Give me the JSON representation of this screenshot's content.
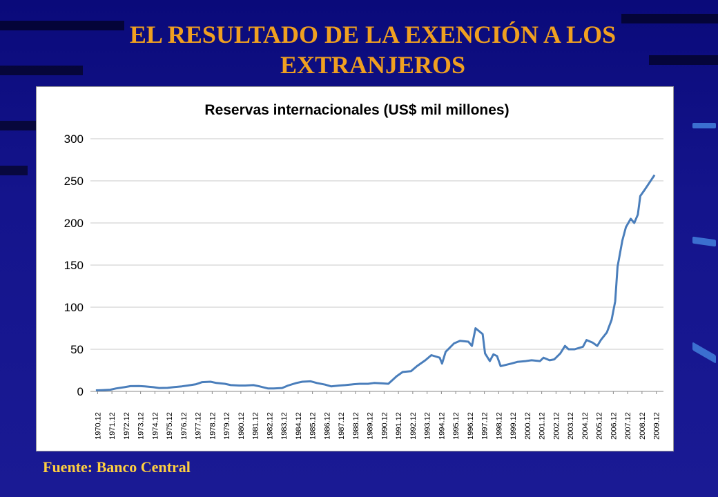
{
  "slide": {
    "title": "EL RESULTADO DE LA EXENCIÓN A LOS EXTRANJEROS",
    "source": "Fuente: Banco Central",
    "title_color": "#f0a020",
    "source_color": "#ffd040",
    "background": "#10108a"
  },
  "chart_data": {
    "type": "line",
    "title": "Reservas internacionales (US$ mil millones)",
    "xlabel": "",
    "ylabel": "",
    "ylim": [
      0,
      300
    ],
    "yticks": [
      0,
      50,
      100,
      150,
      200,
      250,
      300
    ],
    "grid": true,
    "legend": "none",
    "line_color": "#4a7ebb",
    "categories": [
      "1970.12",
      "1971.12",
      "1972.12",
      "1973.12",
      "1974.12",
      "1975.12",
      "1976.12",
      "1977.12",
      "1978.12",
      "1979.12",
      "1980.12",
      "1981.12",
      "1982.12",
      "1983.12",
      "1984.12",
      "1985.12",
      "1986.12",
      "1987.12",
      "1988.12",
      "1989.12",
      "1990.12",
      "1991.12",
      "1992.12",
      "1993.12",
      "1994.12",
      "1995.12",
      "1996.12",
      "1997.12",
      "1998.12",
      "1999.12",
      "2000.12",
      "2001.12",
      "2002.12",
      "2003.12",
      "2004.12",
      "2005.12",
      "2006.12",
      "2007.12",
      "2008.12",
      "2009.12"
    ],
    "series": [
      {
        "points": [
          [
            "1970.12",
            1.2
          ],
          [
            "1971.5",
            1.5
          ],
          [
            "1971.12",
            2
          ],
          [
            "1972.5",
            3.5
          ],
          [
            "1972.12",
            5
          ],
          [
            "1973.5",
            6.2
          ],
          [
            "1973.12",
            6.4
          ],
          [
            "1974.5",
            6
          ],
          [
            "1974.12",
            5
          ],
          [
            "1975.5",
            4
          ],
          [
            "1975.12",
            4.2
          ],
          [
            "1976.5",
            5
          ],
          [
            "1976.12",
            6
          ],
          [
            "1977.5",
            7
          ],
          [
            "1977.12",
            8.5
          ],
          [
            "1978.5",
            11
          ],
          [
            "1978.12",
            11.5
          ],
          [
            "1979.5",
            10
          ],
          [
            "1979.12",
            9
          ],
          [
            "1980.5",
            7.5
          ],
          [
            "1980.12",
            7
          ],
          [
            "1981.5",
            7
          ],
          [
            "1981.12",
            7.5
          ],
          [
            "1982.5",
            6
          ],
          [
            "1982.12",
            3.5
          ],
          [
            "1983.5",
            3.5
          ],
          [
            "1983.12",
            4
          ],
          [
            "1984.5",
            7
          ],
          [
            "1984.12",
            10
          ],
          [
            "1985.5",
            11.5
          ],
          [
            "1985.12",
            12
          ],
          [
            "1986.5",
            10
          ],
          [
            "1986.12",
            8
          ],
          [
            "1987.5",
            6
          ],
          [
            "1987.12",
            7
          ],
          [
            "1988.5",
            7.5
          ],
          [
            "1988.12",
            8.5
          ],
          [
            "1989.5",
            9
          ],
          [
            "1989.12",
            9
          ],
          [
            "1990.5",
            10
          ],
          [
            "1990.12",
            9.5
          ],
          [
            "1991.5",
            9
          ],
          [
            "1991.12",
            18
          ],
          [
            "1992.5",
            23
          ],
          [
            "1992.12",
            24
          ],
          [
            "1993.5",
            30
          ],
          [
            "1993.12",
            37
          ],
          [
            "1994.5",
            43
          ],
          [
            "1994.12",
            40
          ],
          [
            "1995.2",
            33
          ],
          [
            "1995.5",
            47
          ],
          [
            "1995.12",
            57
          ],
          [
            "1996.5",
            60
          ],
          [
            "1996.12",
            59
          ],
          [
            "1997.3",
            54
          ],
          [
            "1997.6",
            75
          ],
          [
            "1997.12",
            68
          ],
          [
            "1998.2",
            45
          ],
          [
            "1998.6",
            36
          ],
          [
            "1998.9",
            44
          ],
          [
            "1998.12",
            42
          ],
          [
            "1999.3",
            30
          ],
          [
            "1999.12",
            33
          ],
          [
            "2000.5",
            35
          ],
          [
            "2000.12",
            36
          ],
          [
            "2001.5",
            37
          ],
          [
            "2001.12",
            36
          ],
          [
            "2002.3",
            40
          ],
          [
            "2002.8",
            37
          ],
          [
            "2002.12",
            38
          ],
          [
            "2003.5",
            45
          ],
          [
            "2003.9",
            54
          ],
          [
            "2003.12",
            50
          ],
          [
            "2004.5",
            50
          ],
          [
            "2004.12",
            53
          ],
          [
            "2005.3",
            61
          ],
          [
            "2005.8",
            58
          ],
          [
            "2005.12",
            54
          ],
          [
            "2006.3",
            61
          ],
          [
            "2006.8",
            70
          ],
          [
            "2006.12",
            85
          ],
          [
            "2007.3",
            107
          ],
          [
            "2007.5",
            148
          ],
          [
            "2007.9",
            179
          ],
          [
            "2007.12",
            195
          ],
          [
            "2008.4",
            205
          ],
          [
            "2008.7",
            200
          ],
          [
            "2008.10",
            210
          ],
          [
            "2008.12",
            232
          ],
          [
            "2009.4",
            240
          ],
          [
            "2009.12",
            257
          ]
        ]
      }
    ]
  }
}
